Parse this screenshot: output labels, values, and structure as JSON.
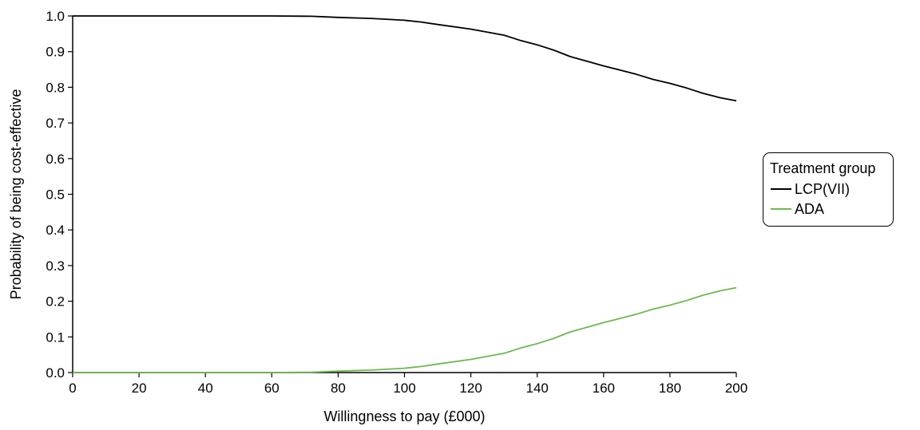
{
  "chart_data": {
    "type": "line",
    "title": "",
    "xlabel": "Willingness to pay (£000)",
    "ylabel": "Probability of being cost-effective",
    "xlim": [
      0,
      200
    ],
    "ylim": [
      0,
      1.0
    ],
    "xticks": [
      0,
      20,
      40,
      60,
      80,
      100,
      120,
      140,
      160,
      180,
      200
    ],
    "yticks": [
      0.0,
      0.1,
      0.2,
      0.3,
      0.4,
      0.5,
      0.6,
      0.7,
      0.8,
      0.9,
      1.0
    ],
    "ytick_labels": [
      "0.0",
      "0.1",
      "0.2",
      "0.3",
      "0.4",
      "0.5",
      "0.6",
      "0.7",
      "0.8",
      "0.9",
      "1.0"
    ],
    "grid": false,
    "legend": {
      "title": "Treatment group",
      "position": "right"
    },
    "series": [
      {
        "name": "LCP(VII)",
        "color": "#000000",
        "x": [
          0,
          60,
          72,
          80,
          90,
          100,
          105,
          110,
          120,
          130,
          135,
          140,
          145,
          150,
          155,
          160,
          165,
          170,
          175,
          180,
          185,
          190,
          195,
          200
        ],
        "y": [
          1.0,
          1.0,
          0.999,
          0.996,
          0.993,
          0.988,
          0.983,
          0.976,
          0.963,
          0.946,
          0.931,
          0.919,
          0.904,
          0.886,
          0.873,
          0.86,
          0.848,
          0.836,
          0.822,
          0.811,
          0.798,
          0.783,
          0.771,
          0.762
        ]
      },
      {
        "name": "ADA",
        "color": "#6cb94e",
        "x": [
          0,
          60,
          72,
          80,
          90,
          100,
          105,
          110,
          120,
          130,
          135,
          140,
          145,
          150,
          155,
          160,
          165,
          170,
          175,
          180,
          185,
          190,
          195,
          200
        ],
        "y": [
          0.0,
          0.0,
          0.001,
          0.004,
          0.007,
          0.012,
          0.017,
          0.024,
          0.037,
          0.054,
          0.069,
          0.081,
          0.096,
          0.114,
          0.127,
          0.14,
          0.152,
          0.164,
          0.178,
          0.189,
          0.202,
          0.217,
          0.229,
          0.238
        ]
      }
    ]
  }
}
